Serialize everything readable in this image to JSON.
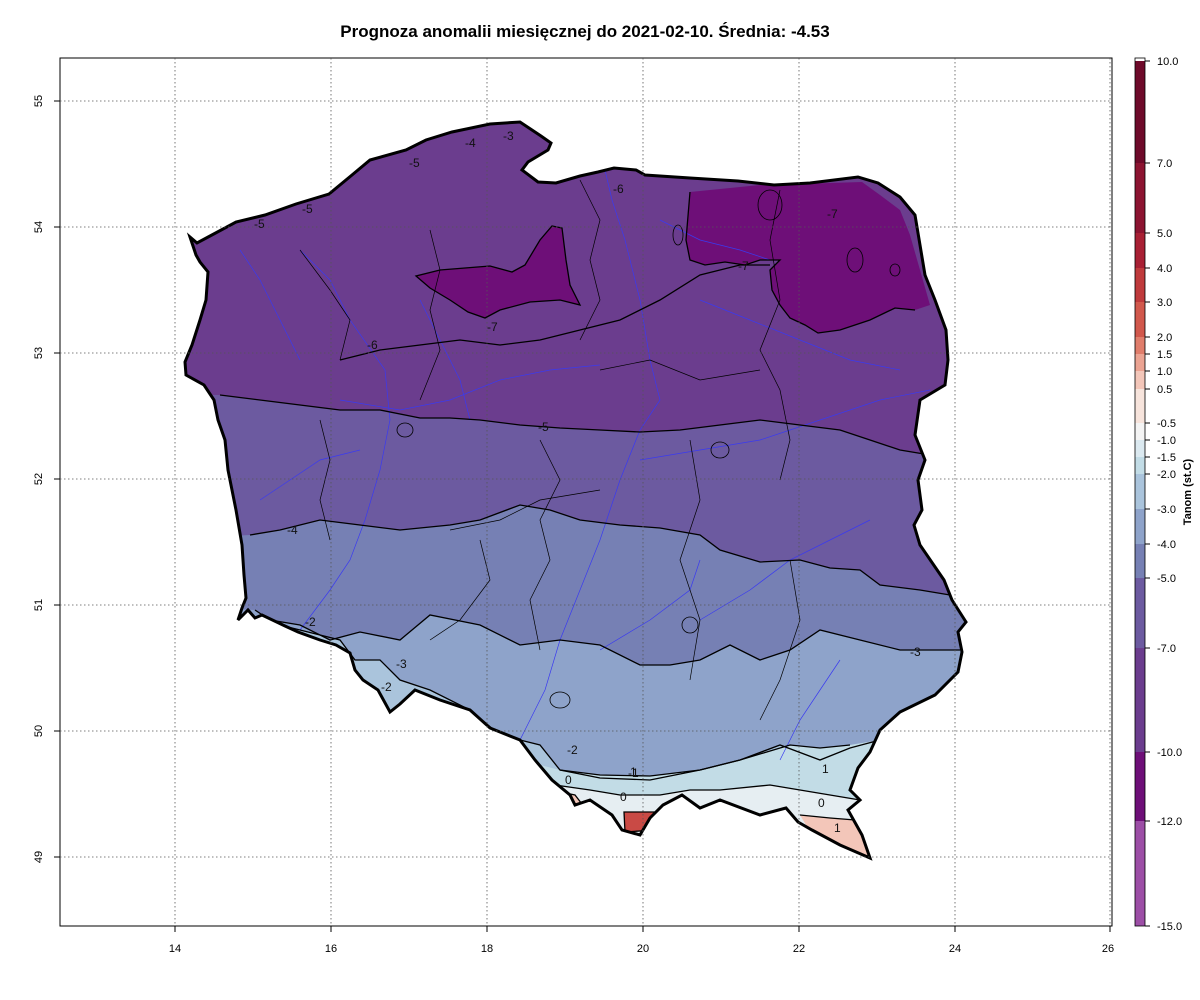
{
  "title": "Prognoza anomalii miesięcznej do 2021-02-10. Średnia: -4.53",
  "axes": {
    "x_ticks": [
      "14",
      "16",
      "18",
      "20",
      "22",
      "24",
      "26"
    ],
    "y_ticks": [
      "49",
      "50",
      "51",
      "52",
      "53",
      "54",
      "55"
    ]
  },
  "colorbar": {
    "label": "Tanom (st.C)",
    "labels": [
      "10.0",
      "7.0",
      "5.0",
      "4.0",
      "3.0",
      "2.0",
      "1.5",
      "1.0",
      "0.5",
      "-0.5",
      "-1.0",
      "-1.5",
      "-2.0",
      "-3.0",
      "-4.0",
      "-5.0",
      "-7.0",
      "-10.0",
      "-12.0",
      "-15.0"
    ],
    "colors": [
      "#6e0a2a",
      "#8c1431",
      "#a82034",
      "#bf3a3c",
      "#d1584c",
      "#e07d6b",
      "#eba392",
      "#f3c6b9",
      "#f7e4dc",
      "#f4f4f4",
      "#dbe9f0",
      "#c2dce6",
      "#aac4dc",
      "#8ea3ca",
      "#7680b4",
      "#6c5aa0",
      "#6b3d8e",
      "#6e0f78",
      "#9c4ea6",
      "#d061ac"
    ]
  },
  "contour_labels": [
    "-4",
    "-3",
    "-5",
    "-5",
    "-5",
    "-6",
    "-7",
    "-7",
    "-7",
    "-6",
    "-5",
    "-4",
    "-3",
    "-2",
    "-2",
    "-3",
    "-2",
    "-1",
    "0",
    "0",
    "1",
    "1",
    "0",
    "1"
  ],
  "colors": {
    "band_m7_m10": "#6e0f78",
    "band_m5_m7": "#6b3d8e",
    "band_m4_m5": "#6c5aa0",
    "band_m3_m4": "#7680b4",
    "band_m2_m3": "#8ea3ca",
    "band_m15_m2": "#aac4dc",
    "band_m1_m15": "#c2dce6",
    "band_near0": "#e6eef2",
    "band_pos": "#f3c6b9",
    "band_pos_hi": "#c94a45",
    "border": "#000000",
    "rivers": "#3a3af0"
  }
}
